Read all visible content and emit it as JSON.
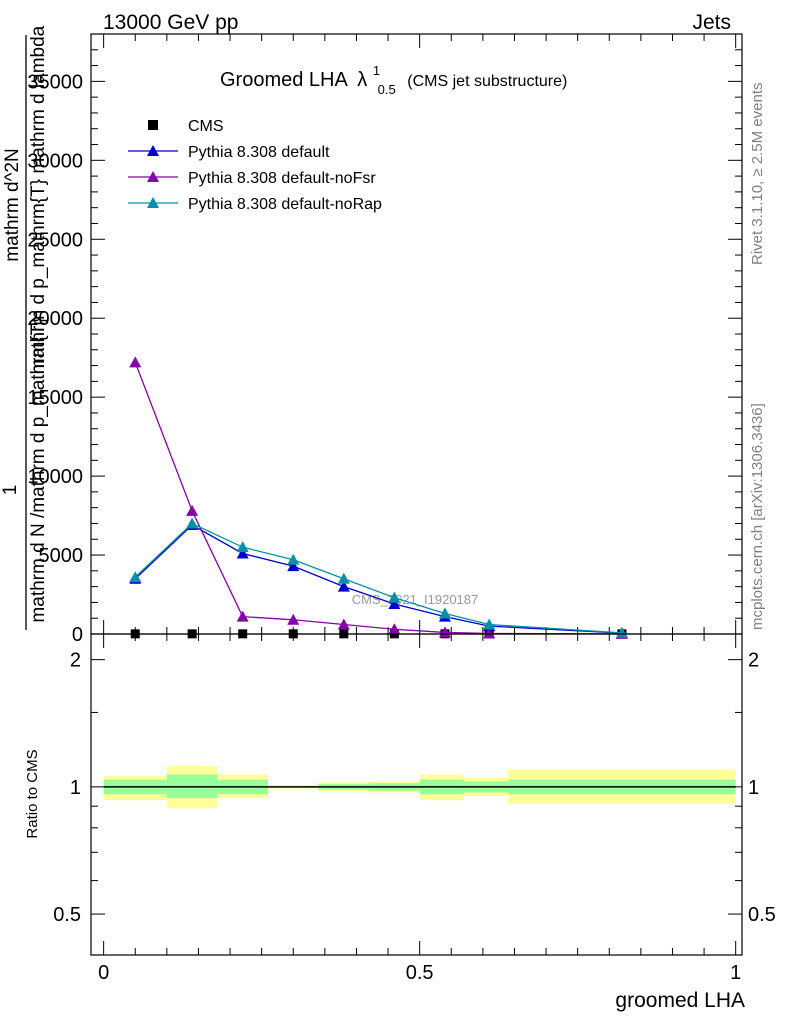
{
  "header": {
    "left": "13000 GeV pp",
    "right": "Jets"
  },
  "side_labels": {
    "rivet": "Rivet 3.1.10, ≥ 2.5M events",
    "mcplots": "mcplots.cern.ch [arXiv:1306.3436]"
  },
  "watermark": "CMS_2021_I1920187",
  "chart_data": [
    {
      "type": "line",
      "title": "Groomed LHA",
      "title_symbol": "λ",
      "title_sup": "1",
      "title_sub": "0.5",
      "title_note": "(CMS jet substructure)",
      "ylabel_lines": [
        "1",
        "mathrm d N /mathrm d p_mathrm{T}",
        "mathrm d^2N",
        "mathrm d p_mathrm{T} mathrm d lambda"
      ],
      "ylim": [
        0,
        38000
      ],
      "yticks": [
        0,
        5000,
        10000,
        15000,
        20000,
        25000,
        30000,
        35000
      ],
      "ytick_labels": [
        "0",
        "5000",
        "10000",
        "15000",
        "20000",
        "25000",
        "30000",
        "35000"
      ],
      "legend_position": "top-left",
      "series": [
        {
          "name": "CMS",
          "color": "#000000",
          "marker": "square",
          "x": [
            0.05,
            0.14,
            0.22,
            0.3,
            0.38,
            0.46,
            0.54,
            0.61,
            0.82
          ],
          "y": [
            10,
            10,
            10,
            10,
            10,
            10,
            10,
            10,
            10
          ]
        },
        {
          "name": "Pythia 8.308 default",
          "color": "#0000cc",
          "marker": "triangle",
          "x": [
            0.05,
            0.14,
            0.22,
            0.3,
            0.38,
            0.46,
            0.54,
            0.61,
            0.82
          ],
          "y": [
            3500,
            6900,
            5100,
            4300,
            3000,
            1900,
            1100,
            500,
            60
          ]
        },
        {
          "name": "Pythia 8.308 default-noFsr",
          "color": "#8800aa",
          "marker": "triangle",
          "x": [
            0.05,
            0.14,
            0.22,
            0.3,
            0.38,
            0.46,
            0.54,
            0.61,
            0.82
          ],
          "y": [
            17200,
            7800,
            1100,
            900,
            600,
            300,
            100,
            30,
            5
          ]
        },
        {
          "name": "Pythia 8.308 default-noRap",
          "color": "#0090aa",
          "marker": "triangle",
          "x": [
            0.05,
            0.14,
            0.22,
            0.3,
            0.38,
            0.46,
            0.54,
            0.61,
            0.82
          ],
          "y": [
            3600,
            7000,
            5500,
            4700,
            3500,
            2300,
            1300,
            600,
            70
          ]
        }
      ]
    },
    {
      "type": "area",
      "ylabel": "Ratio to CMS",
      "xlabel": "groomed LHA",
      "xlim": [
        -0.02,
        1.01
      ],
      "xticks": [
        0,
        0.5,
        1
      ],
      "xtick_labels": [
        "0",
        "0.5",
        "1"
      ],
      "ylim": [
        0.4,
        2.3
      ],
      "yticks": [
        0.5,
        1,
        2
      ],
      "ytick_labels": [
        "0.5",
        "1",
        "2"
      ],
      "log_y": true,
      "reference_line": 1,
      "bands": {
        "bin_edges": [
          0,
          0.1,
          0.18,
          0.26,
          0.34,
          0.42,
          0.5,
          0.57,
          0.64,
          1.0
        ],
        "stat": [
          [
            0.96,
            1.04
          ],
          [
            0.94,
            1.07
          ],
          [
            0.96,
            1.04
          ],
          [
            0.995,
            1.005
          ],
          [
            0.985,
            1.015
          ],
          [
            0.98,
            1.02
          ],
          [
            0.96,
            1.04
          ],
          [
            0.97,
            1.03
          ],
          [
            0.96,
            1.04
          ]
        ],
        "total": [
          [
            0.93,
            1.06
          ],
          [
            0.89,
            1.12
          ],
          [
            0.94,
            1.07
          ],
          [
            0.99,
            1.01
          ],
          [
            0.975,
            1.025
          ],
          [
            0.97,
            1.03
          ],
          [
            0.93,
            1.07
          ],
          [
            0.95,
            1.05
          ],
          [
            0.91,
            1.1
          ]
        ],
        "stat_color": "#99ff99",
        "total_color": "#ffff99"
      }
    }
  ]
}
